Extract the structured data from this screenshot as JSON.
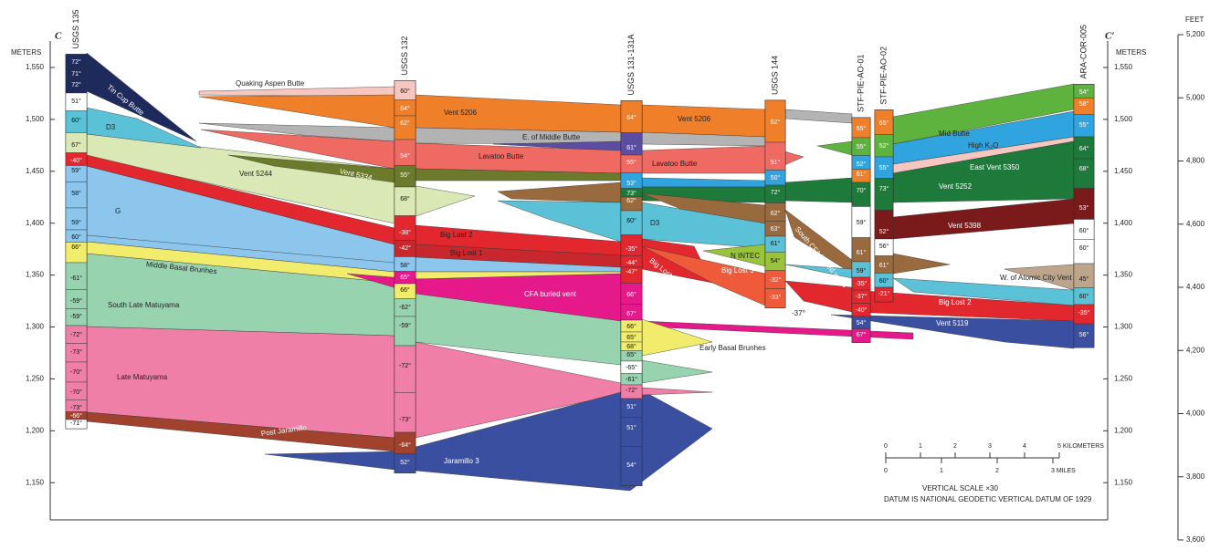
{
  "section": {
    "start_label": "C",
    "end_label": "C′"
  },
  "axes": {
    "meters_title": "METERS",
    "meters_ticks": [
      "1,550",
      "1,500",
      "1,450",
      "1,400",
      "1,350",
      "1,300",
      "1,250",
      "1,200",
      "1,150"
    ],
    "feet_title": "FEET",
    "feet_ticks": [
      "5,200",
      "5,000",
      "4,800",
      "4,600",
      "4,400",
      "4,200",
      "4,000",
      "3,800",
      "3,600"
    ]
  },
  "wells": [
    {
      "name": "USGS 135",
      "readings": [
        "72°",
        "71°",
        "72°",
        "51°",
        "60°",
        "67°",
        "-40°",
        "59°",
        "58°",
        "59°",
        "60°",
        "66°",
        "-61°",
        "-59°",
        "-59°",
        "-72°",
        "-73°",
        "-70°",
        "-70°",
        "-73°",
        "-66°",
        "-71°"
      ]
    },
    {
      "name": "USGS 132",
      "readings": [
        "60°",
        "64°",
        "62°",
        "54°",
        "55°",
        "68°",
        "-38°",
        "-42°",
        "58°",
        "65°",
        "66°",
        "-62°",
        "-59°",
        "-72°",
        "-73°",
        "-64°",
        "52°"
      ]
    },
    {
      "name": "USGS 131-131A",
      "readings": [
        "64°",
        "61°",
        "55°",
        "53°",
        "73°",
        "62°",
        "60°",
        "-35°",
        "-44°",
        "-47°",
        "66°",
        "67°",
        "66°",
        "65°",
        "68°",
        "65°",
        "-65°",
        "-61°",
        "-72°",
        "51°",
        "51°",
        "54°"
      ]
    },
    {
      "name": "USGS 144",
      "readings": [
        "62°",
        "51°",
        "50°",
        "72°",
        "62°",
        "63°",
        "61°",
        "54°",
        "-32°",
        "-33°"
      ]
    },
    {
      "name": "STF-PIE-AO-01",
      "readings": [
        "65°",
        "55°",
        "52°",
        "61°",
        "70°",
        "59°",
        "61°",
        "59°",
        "-35°",
        "-37°",
        "-40°",
        "54°",
        "67°"
      ]
    },
    {
      "name": "STF-PIE-AO-02",
      "readings": [
        "65°",
        "52°",
        "55°",
        "73°",
        "52°",
        "56°",
        "61°",
        "60°",
        "-21°"
      ]
    },
    {
      "name": "ARA-COR-005",
      "readings": [
        "54°",
        "58°",
        "55°",
        "64°",
        "68°",
        "53°",
        "60°",
        "60°",
        "45°",
        "60°",
        "-35°",
        "56°"
      ]
    }
  ],
  "units": [
    "Tin Cup Butte",
    "Quaking Aspen Butte",
    "D3",
    "Vent 5206",
    "Vent 5206",
    "E. of Middle Butte",
    "Lavatoo Butte",
    "Lavatoo Butte",
    "Vent 5244",
    "Vent 5334",
    "G",
    "D3",
    "Big Lost 2",
    "Big Lost 1",
    "Middle Basal Brunhes",
    "South Late Matuyama",
    "CFA buried vent",
    "Big Lost 2",
    "Big Lost 3",
    "N INTEC",
    "South CFA buried vents",
    "-37°",
    "Early Basal Brunhes",
    "Late Matuyama",
    "Post Jaramillo",
    "Jaramillo 3",
    "Mid Butte",
    "High K₂O",
    "East Vent 5350",
    "Vent 5252",
    "Vent 5398",
    "W. of Atomic City Vent",
    "Big Lost 2",
    "Vent 5119"
  ],
  "scale": {
    "km_ticks": [
      "0",
      "1",
      "2",
      "3",
      "4",
      "5 KILOMETERS"
    ],
    "mile_ticks": [
      "0",
      "1",
      "2",
      "3 MILES"
    ],
    "vertical_scale": "VERTICAL SCALE ×30",
    "datum": "DATUM IS NATIONAL GEODETIC VERTICAL DATUM OF 1929"
  }
}
